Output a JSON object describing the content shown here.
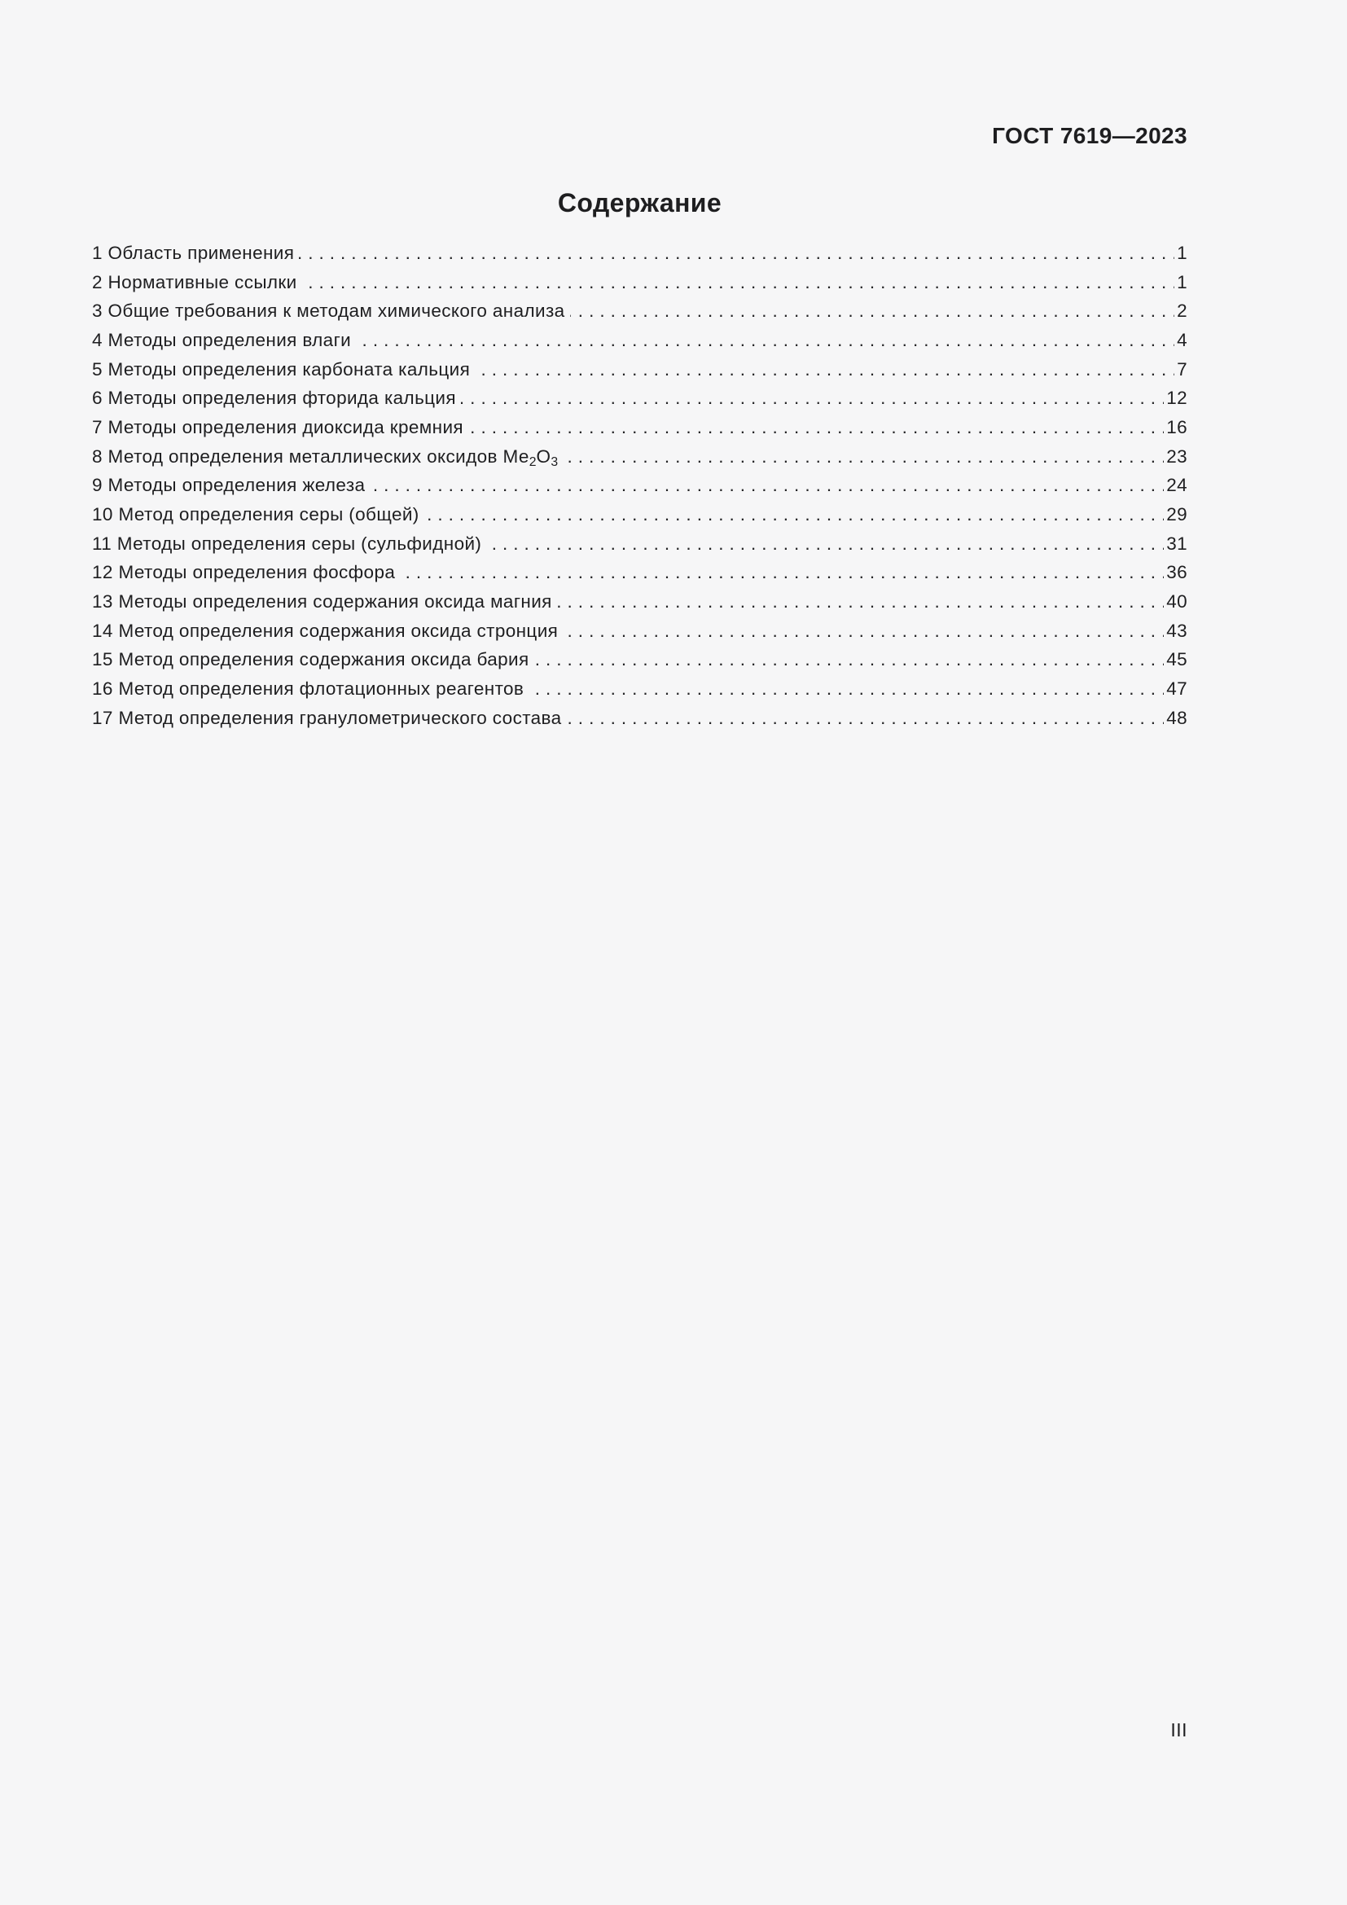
{
  "header": {
    "standard_ref": "ГОСТ 7619—2023",
    "title": "Содержание"
  },
  "toc": {
    "entries": [
      {
        "num": "1",
        "title": "Область применения",
        "page": "1"
      },
      {
        "num": "2",
        "title": "Нормативные ссылки",
        "page": "1"
      },
      {
        "num": "3",
        "title": "Общие требования к методам химического анализа",
        "page": "2"
      },
      {
        "num": "4",
        "title": "Методы определения влаги",
        "page": "4"
      },
      {
        "num": "5",
        "title": "Методы определения карбоната кальция",
        "page": "7"
      },
      {
        "num": "6",
        "title": "Методы определения фторида кальция",
        "page": "12"
      },
      {
        "num": "7",
        "title": "Методы определения диоксида кремния",
        "page": "16"
      },
      {
        "num": "8",
        "title_parts": [
          {
            "text": "Метод определения металлических оксидов Ме"
          },
          {
            "text": "2",
            "sub": true
          },
          {
            "text": "О"
          },
          {
            "text": "3",
            "sub": true
          }
        ],
        "page": "23"
      },
      {
        "num": "9",
        "title": "Методы определения железа",
        "page": "24"
      },
      {
        "num": "10",
        "title": "Метод определения серы (общей)",
        "page": "29"
      },
      {
        "num": "11",
        "title": "Методы определения серы (сульфидной)",
        "page": "31"
      },
      {
        "num": "12",
        "title": "Методы определения фосфора",
        "page": "36"
      },
      {
        "num": "13",
        "title": "Методы определения содержания оксида магния",
        "page": "40"
      },
      {
        "num": "14",
        "title": "Метод определения содержания оксида стронция",
        "page": "43"
      },
      {
        "num": "15",
        "title": "Метод определения содержания оксида бария",
        "page": "45"
      },
      {
        "num": "16",
        "title": "Метод определения флотационных реагентов",
        "page": "47"
      },
      {
        "num": "17",
        "title": "Метод определения гранулометрического состава",
        "page": "48"
      }
    ]
  },
  "footer": {
    "folio": "III"
  }
}
